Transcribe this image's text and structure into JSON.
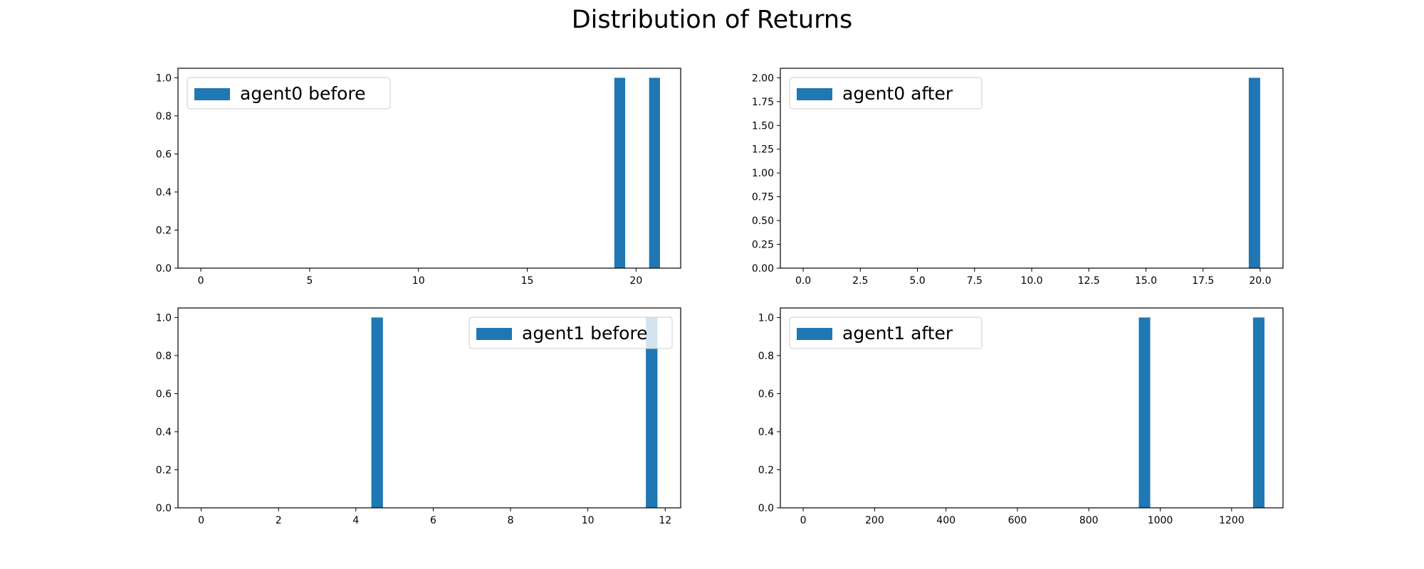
{
  "figure": {
    "title": "Distribution of Returns"
  },
  "colors": {
    "bar": "#1f77b4",
    "axis": "#000000",
    "legend_border": "#cccccc",
    "background": "#ffffff"
  },
  "chart_data": [
    {
      "type": "bar",
      "legend": "agent0 before",
      "legend_position": "upper left",
      "xlim": [
        -1.05,
        22.05
      ],
      "ylim": [
        0,
        1.05
      ],
      "xticks": [
        0,
        5,
        10,
        15,
        20
      ],
      "xtick_labels": [
        "0",
        "5",
        "10",
        "15",
        "20"
      ],
      "yticks": [
        0,
        0.2,
        0.4,
        0.6,
        0.8,
        1.0
      ],
      "ytick_labels": [
        "0.0",
        "0.2",
        "0.4",
        "0.6",
        "0.8",
        "1.0"
      ],
      "bin_width": 0.5,
      "bars": [
        {
          "x": 19.0,
          "value": 1
        },
        {
          "x": 20.6,
          "value": 1
        }
      ]
    },
    {
      "type": "bar",
      "legend": "agent0 after",
      "legend_position": "upper left",
      "xlim": [
        -1.0,
        21.0
      ],
      "ylim": [
        0,
        2.1
      ],
      "xticks": [
        0,
        2.5,
        5,
        7.5,
        10,
        12.5,
        15,
        17.5,
        20
      ],
      "xtick_labels": [
        "0.0",
        "2.5",
        "5.0",
        "7.5",
        "10.0",
        "12.5",
        "15.0",
        "17.5",
        "20.0"
      ],
      "yticks": [
        0,
        0.25,
        0.5,
        0.75,
        1.0,
        1.25,
        1.5,
        1.75,
        2.0
      ],
      "ytick_labels": [
        "0.00",
        "0.25",
        "0.50",
        "0.75",
        "1.00",
        "1.25",
        "1.50",
        "1.75",
        "2.00"
      ],
      "bin_width": 0.5,
      "bars": [
        {
          "x": 19.5,
          "value": 2
        }
      ]
    },
    {
      "type": "bar",
      "legend": "agent1 before",
      "legend_position": "upper right",
      "xlim": [
        -0.6,
        12.4
      ],
      "ylim": [
        0,
        1.05
      ],
      "xticks": [
        0,
        2,
        4,
        6,
        8,
        10,
        12
      ],
      "xtick_labels": [
        "0",
        "2",
        "4",
        "6",
        "8",
        "10",
        "12"
      ],
      "yticks": [
        0,
        0.2,
        0.4,
        0.6,
        0.8,
        1.0
      ],
      "ytick_labels": [
        "0.0",
        "0.2",
        "0.4",
        "0.6",
        "0.8",
        "1.0"
      ],
      "bin_width": 0.3,
      "bars": [
        {
          "x": 4.4,
          "value": 1
        },
        {
          "x": 11.5,
          "value": 1
        }
      ]
    },
    {
      "type": "bar",
      "legend": "agent1 after",
      "legend_position": "upper left",
      "xlim": [
        -64,
        1344
      ],
      "ylim": [
        0,
        1.05
      ],
      "xticks": [
        0,
        200,
        400,
        600,
        800,
        1000,
        1200
      ],
      "xtick_labels": [
        "0",
        "200",
        "400",
        "600",
        "800",
        "1000",
        "1200"
      ],
      "yticks": [
        0,
        0.2,
        0.4,
        0.6,
        0.8,
        1.0
      ],
      "ytick_labels": [
        "0.0",
        "0.2",
        "0.4",
        "0.6",
        "0.8",
        "1.0"
      ],
      "bin_width": 32,
      "bars": [
        {
          "x": 940,
          "value": 1
        },
        {
          "x": 1260,
          "value": 1
        }
      ]
    }
  ]
}
